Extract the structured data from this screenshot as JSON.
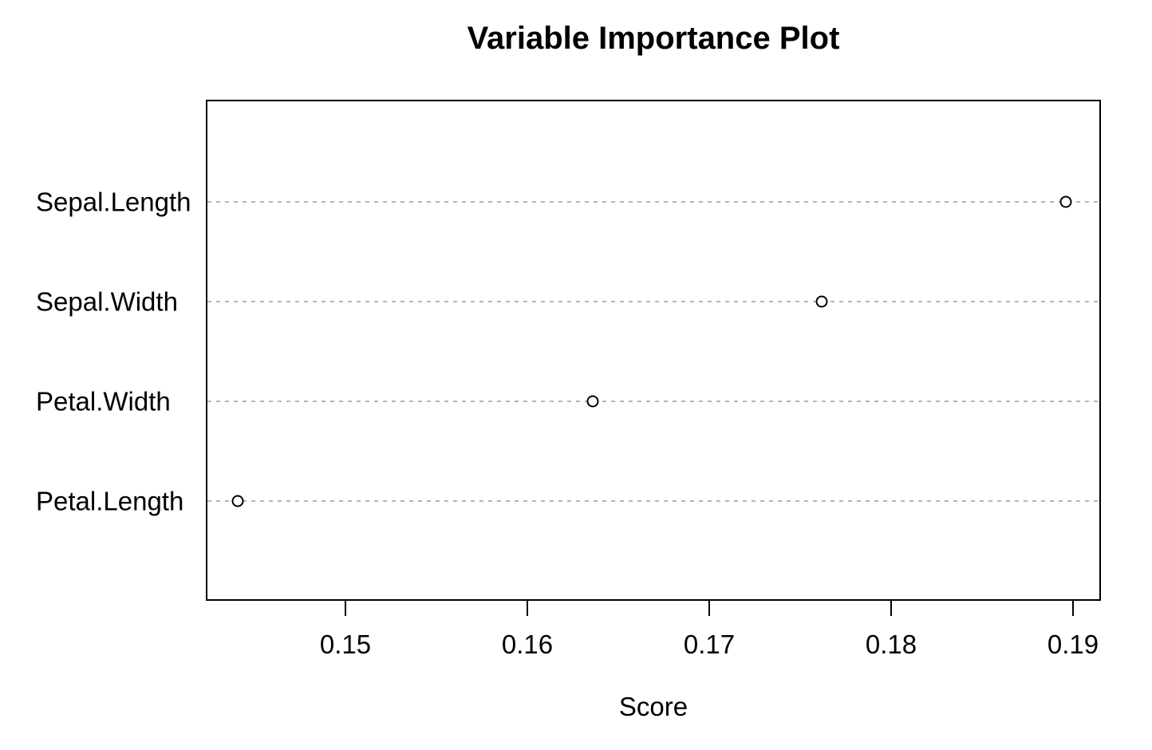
{
  "chart_data": {
    "type": "scatter",
    "subtype": "dotchart-horizontal",
    "title": "Variable Importance Plot",
    "xlabel": "Score",
    "ylabel": "",
    "categories": [
      "Sepal.Length",
      "Sepal.Width",
      "Petal.Width",
      "Petal.Length"
    ],
    "values": [
      0.1896,
      0.1762,
      0.1636,
      0.1441
    ],
    "x_ticks": [
      0.15,
      0.16,
      0.17,
      0.18,
      0.19
    ],
    "x_tick_labels": [
      "0.15",
      "0.16",
      "0.17",
      "0.18",
      "0.19"
    ],
    "xlim": [
      0.1423,
      0.1915
    ],
    "grid": "horizontal dotted line per category",
    "legend": "none",
    "colors": {
      "background": "#ffffff",
      "text": "#000000",
      "point_stroke": "#000000",
      "point_fill": "#ffffff",
      "grid_line": "#b4b4b4",
      "axis_line": "#000000"
    }
  }
}
